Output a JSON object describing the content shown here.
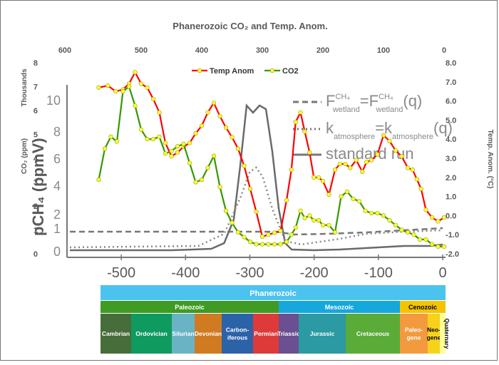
{
  "chart_data": {
    "type": "line",
    "title": "Phanerozoic CO₂ and Temp. Anom.",
    "top_axis": {
      "ticks": [
        "600",
        "500",
        "400",
        "300",
        "200",
        "100",
        "0"
      ]
    },
    "left_axis": {
      "label_main": "CO₂ (ppm)",
      "label_unit": "Thousands",
      "ticks": [
        "0",
        "1",
        "2",
        "3",
        "4",
        "5",
        "6",
        "7",
        "8"
      ],
      "ylim": [
        0,
        8
      ]
    },
    "right_axis": {
      "label": "Temp. Anom. (°C)",
      "ticks": [
        "8.0",
        "7.0",
        "6.0",
        "5.0",
        "4.0",
        "3.0",
        "2.0",
        "1.0",
        "0.0",
        "-1.0",
        "-2.0"
      ],
      "ylim": [
        -2,
        8
      ]
    },
    "x_range_mya": [
      600,
      0
    ],
    "legend": {
      "position": "top-center"
    },
    "series": [
      {
        "name": "Temp Anom",
        "color": "#ff0000",
        "axis": "right",
        "x": [
          570,
          555,
          542,
          530,
          520,
          510,
          500,
          490,
          480,
          470,
          460,
          450,
          440,
          430,
          420,
          410,
          400,
          390,
          380,
          370,
          360,
          350,
          340,
          330,
          320,
          310,
          300,
          290,
          280,
          270,
          260,
          252,
          245,
          237,
          230,
          222,
          215,
          207,
          200,
          190,
          180,
          172,
          163,
          155,
          145,
          135,
          128,
          120,
          110,
          100,
          90,
          80,
          70,
          60,
          52,
          45,
          38,
          30,
          20,
          10,
          0
        ],
        "values": [
          6.7,
          6.8,
          6.5,
          6.6,
          6.9,
          7.5,
          6.9,
          6.7,
          6.1,
          5.4,
          3.8,
          3.1,
          3.3,
          3.6,
          3.8,
          4.3,
          4.7,
          5.4,
          5.9,
          5.2,
          4.6,
          4.1,
          3.5,
          2.6,
          1.4,
          0.2,
          -1.1,
          -1.0,
          -0.9,
          -0.8,
          0.8,
          2.4,
          4.9,
          5.4,
          4.4,
          3.3,
          2.0,
          2.0,
          1.8,
          1.1,
          2.4,
          2.7,
          2.7,
          2.5,
          2.9,
          2.3,
          2.8,
          2.9,
          3.2,
          4.2,
          3.9,
          3.4,
          3.1,
          2.5,
          2.4,
          1.9,
          1.4,
          0.3,
          -0.1,
          -0.3,
          -0.1
        ]
      },
      {
        "name": "CO2",
        "color": "#339900",
        "axis": "left",
        "x": [
          570,
          560,
          550,
          540,
          530,
          520,
          510,
          500,
          490,
          480,
          470,
          460,
          450,
          440,
          430,
          420,
          410,
          400,
          390,
          380,
          370,
          360,
          350,
          340,
          330,
          320,
          310,
          300,
          290,
          280,
          270,
          260,
          252,
          245,
          237,
          230,
          222,
          215,
          207,
          200,
          190,
          180,
          170,
          160,
          150,
          140,
          130,
          120,
          110,
          100,
          90,
          80,
          70,
          60,
          50,
          40,
          30,
          20,
          10,
          0
        ],
        "values": [
          3.1,
          4.4,
          4.9,
          4.7,
          6.8,
          7.0,
          6.2,
          5.2,
          4.8,
          4.8,
          4.9,
          4.2,
          4.3,
          4.5,
          4.6,
          3.8,
          3.0,
          3.1,
          3.6,
          4.1,
          2.8,
          1.8,
          1.3,
          0.9,
          0.7,
          0.5,
          0.4,
          0.4,
          0.4,
          0.4,
          0.4,
          0.5,
          0.8,
          1.1,
          1.8,
          1.5,
          1.6,
          1.4,
          1.4,
          1.2,
          1.2,
          0.9,
          2.4,
          2.6,
          2.3,
          2.2,
          1.8,
          1.7,
          1.7,
          1.6,
          1.4,
          1.2,
          1.0,
          0.9,
          0.8,
          0.6,
          0.6,
          0.4,
          0.3,
          0.3
        ]
      }
    ]
  },
  "background_figure": {
    "x_axis": {
      "ticks": [
        "-500",
        "-400",
        "-300",
        "-200",
        "-100",
        "0"
      ],
      "range": [
        -580,
        0
      ]
    },
    "y_axis": {
      "label": "pCH₄ (ppmV)",
      "ticks": [
        "0",
        "1",
        "2",
        "4",
        "6",
        "8",
        "10"
      ]
    },
    "legend_rows": [
      {
        "lhs": "F",
        "lhs_sup": "CH₄",
        "lhs_sub": "wetland",
        "mid": "=F",
        "mid_sup": "CH₄",
        "mid_sub": "wetland",
        "rhs": "(q)"
      },
      {
        "lhs": "k",
        "lhs_sup": "",
        "lhs_sub": "atmosphere",
        "mid": "=k",
        "mid_sup": "",
        "mid_sub": "atmosphere",
        "rhs": "(q)"
      },
      {
        "lhs": "standard run",
        "lhs_sup": "",
        "lhs_sub": "",
        "mid": "",
        "mid_sup": "",
        "mid_sub": "",
        "rhs": ""
      }
    ]
  },
  "timescale": {
    "eon": "Phanerozoic",
    "eras": [
      {
        "name": "Paleozoic",
        "color": "#3f9b23"
      },
      {
        "name": "Mesozoic",
        "color": "#16a7dc"
      },
      {
        "name": "Cenozoic",
        "color": "#f5c400"
      }
    ],
    "periods": [
      {
        "name": "Cambrian",
        "color": "#476d3a"
      },
      {
        "name": "Ordovician",
        "color": "#0f9a60"
      },
      {
        "name": "Silurian",
        "color": "#69b3c4"
      },
      {
        "name": "Devonian",
        "color": "#d07a22"
      },
      {
        "name": "Carbon-\niferous",
        "color": "#2b62a8"
      },
      {
        "name": "Permian",
        "color": "#df3a3a"
      },
      {
        "name": "Triassic",
        "color": "#6a4f91"
      },
      {
        "name": "Jurassic",
        "color": "#2b9aa2"
      },
      {
        "name": "Cretaceous",
        "color": "#5aab38"
      },
      {
        "name": "Paleo-\ngene",
        "color": "#f39a3e"
      },
      {
        "name": "Neo-\ngene",
        "color": "#f7d21a"
      },
      {
        "name": "Quaternary",
        "color": "#ffff99"
      }
    ]
  }
}
